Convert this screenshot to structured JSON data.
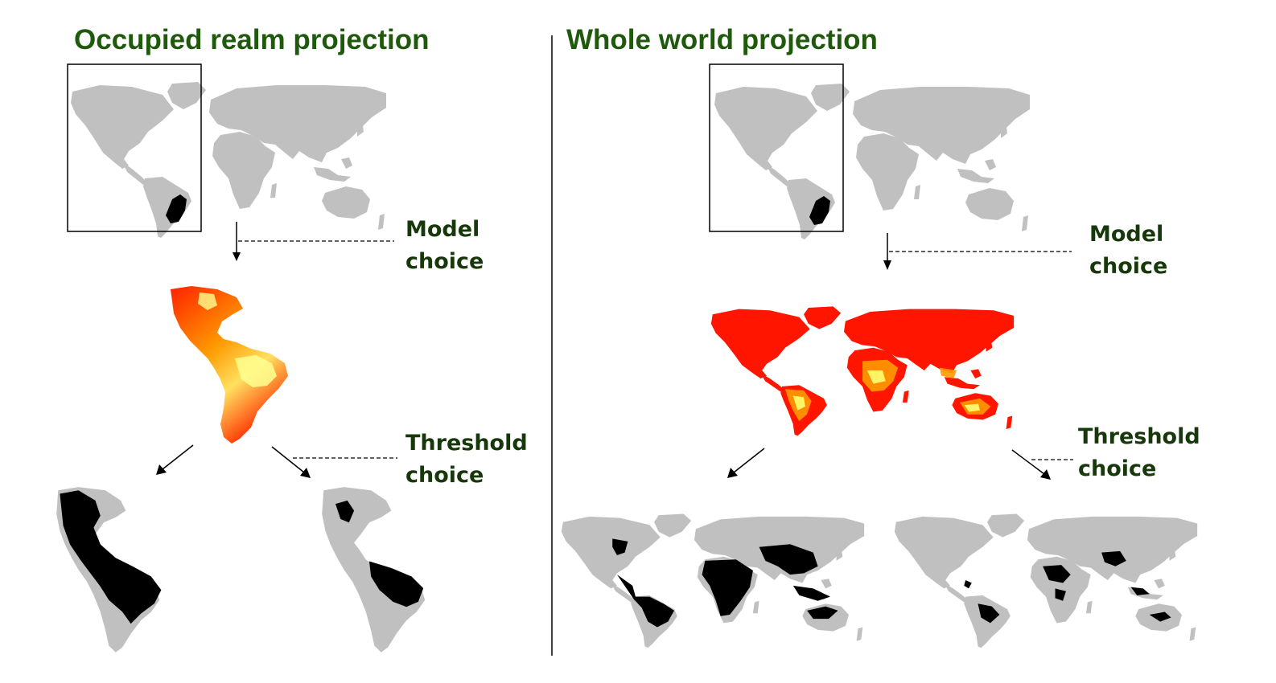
{
  "colors": {
    "title": "#1f5a0c",
    "label": "#17380b",
    "land": "#c0c0c0",
    "range": "#000000",
    "suit_low": "#ff0000",
    "suit_mid": "#ff9000",
    "suit_high": "#ffff80",
    "frame": "#000000"
  },
  "left_panel": {
    "title": "Occupied realm projection",
    "model_label": [
      "Model",
      "choice"
    ],
    "threshold_label": [
      "Threshold",
      "choice"
    ]
  },
  "right_panel": {
    "title": "Whole world projection",
    "model_label": [
      "Model",
      "choice"
    ],
    "threshold_label": [
      "Threshold",
      "choice"
    ]
  }
}
